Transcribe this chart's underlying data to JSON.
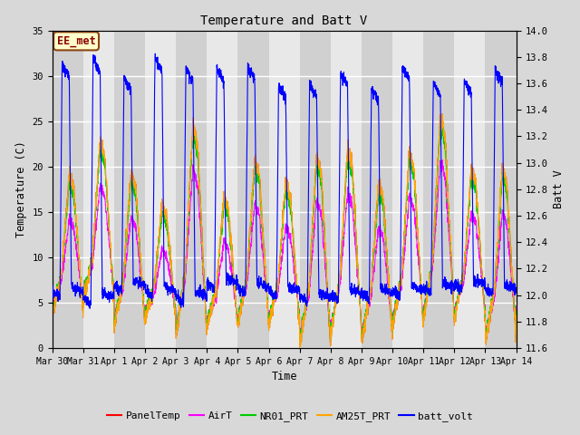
{
  "title": "Temperature and Batt V",
  "xlabel": "Time",
  "ylabel_left": "Temperature (C)",
  "ylabel_right": "Batt V",
  "annotation": "EE_met",
  "ylim_left": [
    0,
    35
  ],
  "ylim_right": [
    11.6,
    14.0
  ],
  "x_tick_labels": [
    "Mar 30",
    "Mar 31",
    "Apr 1",
    "Apr 2",
    "Apr 3",
    "Apr 4",
    "Apr 5",
    "Apr 6",
    "Apr 7",
    "Apr 8",
    "Apr 9",
    "Apr 10",
    "Apr 11",
    "Apr 12",
    "Apr 13",
    "Apr 14"
  ],
  "x_tick_positions": [
    0,
    1,
    2,
    3,
    4,
    5,
    6,
    7,
    8,
    9,
    10,
    11,
    12,
    13,
    14,
    15
  ],
  "y_left_ticks": [
    0,
    5,
    10,
    15,
    20,
    25,
    30,
    35
  ],
  "y_right_ticks": [
    11.6,
    11.8,
    12.0,
    12.2,
    12.4,
    12.6,
    12.8,
    13.0,
    13.2,
    13.4,
    13.6,
    13.8,
    14.0
  ],
  "colors": {
    "PanelTemp": "#FF0000",
    "AirT": "#FF00FF",
    "NR01_PRT": "#00CC00",
    "AM25T_PRT": "#FFA500",
    "batt_volt": "#0000FF"
  },
  "bg_color": "#D8D8D8",
  "plot_bg": "#E8E8E8",
  "grid_color": "#FFFFFF",
  "band_color": "#D0D0D0",
  "font_family": "monospace"
}
